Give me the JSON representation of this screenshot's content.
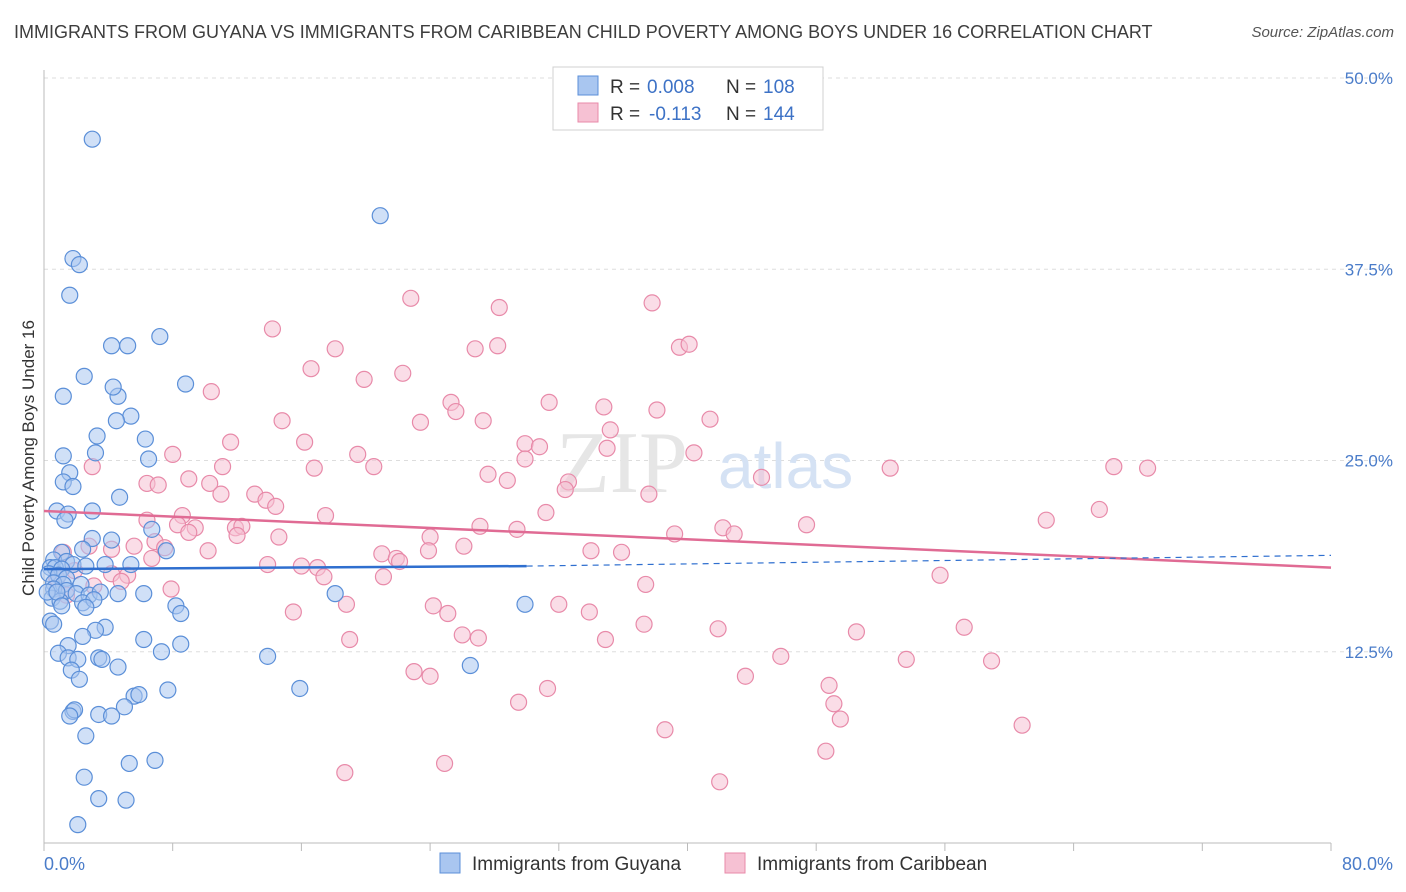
{
  "title": "IMMIGRANTS FROM GUYANA VS IMMIGRANTS FROM CARIBBEAN CHILD POVERTY AMONG BOYS UNDER 16 CORRELATION CHART",
  "source": "Source: ZipAtlas.com",
  "watermark": {
    "zip": "ZIP",
    "atlas": "atlas"
  },
  "legend_box": {
    "rows": [
      {
        "r_label": "R =",
        "r_value": "0.008",
        "n_label": "N =",
        "n_value": "108"
      },
      {
        "r_label": "R =",
        "r_value": "-0.113",
        "n_label": "N =",
        "n_value": "144"
      }
    ]
  },
  "colors": {
    "guyana_fill": "#a9c6f0",
    "guyana_stroke": "#5b8fd8",
    "guyana_line": "#2f6fcf",
    "caribbean_fill": "#f6c1d3",
    "caribbean_stroke": "#e88aa9",
    "caribbean_line": "#e06b94",
    "tick_text": "#4a7cc9",
    "grid": "#dddddd"
  },
  "chart_data": {
    "type": "scatter",
    "title": "IMMIGRANTS FROM GUYANA VS IMMIGRANTS FROM CARIBBEAN CHILD POVERTY AMONG BOYS UNDER 16 CORRELATION CHART",
    "xlabel": "",
    "ylabel": "Child Poverty Among Boys Under 16",
    "xlim": [
      0,
      80
    ],
    "ylim": [
      0,
      50
    ],
    "x_tick_labels": [
      "0.0%",
      "80.0%"
    ],
    "y_tick_values": [
      12.5,
      25,
      37.5,
      50
    ],
    "y_tick_labels": [
      "12.5%",
      "25.0%",
      "37.5%",
      "50.0%"
    ],
    "grid": true,
    "legend_position": "top-center",
    "series": [
      {
        "name": "Immigrants from Guyana",
        "R": 0.008,
        "N": 108,
        "trend": {
          "x": [
            0,
            30
          ],
          "y": [
            17.9,
            18.1
          ],
          "dashed_extension_to": [
            80,
            18.8
          ]
        },
        "points": [
          [
            3.0,
            46.0
          ],
          [
            1.8,
            38.2
          ],
          [
            2.2,
            37.8
          ],
          [
            1.6,
            35.8
          ],
          [
            20.9,
            41.0
          ],
          [
            4.2,
            32.5
          ],
          [
            5.2,
            32.5
          ],
          [
            7.2,
            33.1
          ],
          [
            2.5,
            30.5
          ],
          [
            8.8,
            30.0
          ],
          [
            1.2,
            29.2
          ],
          [
            4.6,
            29.2
          ],
          [
            4.3,
            29.8
          ],
          [
            5.4,
            27.9
          ],
          [
            4.5,
            27.6
          ],
          [
            3.3,
            26.6
          ],
          [
            6.3,
            26.4
          ],
          [
            1.2,
            25.3
          ],
          [
            3.2,
            25.5
          ],
          [
            6.5,
            25.1
          ],
          [
            1.6,
            24.2
          ],
          [
            1.2,
            23.6
          ],
          [
            1.8,
            23.3
          ],
          [
            4.7,
            22.6
          ],
          [
            0.8,
            21.7
          ],
          [
            1.5,
            21.5
          ],
          [
            3.0,
            21.7
          ],
          [
            1.3,
            21.1
          ],
          [
            6.7,
            20.5
          ],
          [
            3.0,
            19.9
          ],
          [
            4.2,
            19.8
          ],
          [
            7.6,
            19.1
          ],
          [
            2.4,
            19.2
          ],
          [
            1.1,
            19.0
          ],
          [
            0.6,
            18.5
          ],
          [
            1.4,
            18.4
          ],
          [
            1.8,
            18.2
          ],
          [
            0.4,
            18.0
          ],
          [
            0.7,
            18.0
          ],
          [
            1.1,
            17.9
          ],
          [
            2.6,
            18.1
          ],
          [
            3.8,
            18.2
          ],
          [
            5.4,
            18.2
          ],
          [
            0.3,
            17.6
          ],
          [
            0.9,
            17.5
          ],
          [
            1.4,
            17.3
          ],
          [
            0.6,
            17.0
          ],
          [
            1.2,
            16.9
          ],
          [
            2.3,
            16.9
          ],
          [
            0.6,
            16.6
          ],
          [
            1.4,
            16.5
          ],
          [
            2.0,
            16.3
          ],
          [
            2.8,
            16.2
          ],
          [
            3.5,
            16.4
          ],
          [
            4.6,
            16.3
          ],
          [
            6.2,
            16.3
          ],
          [
            0.5,
            16.0
          ],
          [
            1.0,
            15.8
          ],
          [
            2.4,
            15.7
          ],
          [
            3.1,
            15.9
          ],
          [
            0.2,
            16.4
          ],
          [
            0.8,
            16.4
          ],
          [
            18.1,
            16.3
          ],
          [
            29.9,
            15.6
          ],
          [
            1.1,
            15.5
          ],
          [
            2.6,
            15.4
          ],
          [
            8.2,
            15.5
          ],
          [
            8.5,
            15.0
          ],
          [
            0.4,
            14.5
          ],
          [
            0.6,
            14.3
          ],
          [
            3.8,
            14.1
          ],
          [
            3.2,
            13.9
          ],
          [
            2.4,
            13.5
          ],
          [
            6.2,
            13.3
          ],
          [
            8.5,
            13.0
          ],
          [
            1.5,
            12.9
          ],
          [
            0.9,
            12.4
          ],
          [
            1.5,
            12.1
          ],
          [
            2.1,
            12.0
          ],
          [
            3.4,
            12.1
          ],
          [
            7.3,
            12.5
          ],
          [
            13.9,
            12.2
          ],
          [
            26.5,
            11.6
          ],
          [
            3.6,
            12.0
          ],
          [
            4.6,
            11.5
          ],
          [
            1.7,
            11.3
          ],
          [
            2.2,
            10.7
          ],
          [
            7.7,
            10.0
          ],
          [
            15.9,
            10.1
          ],
          [
            5.6,
            9.6
          ],
          [
            5.9,
            9.7
          ],
          [
            5.0,
            8.9
          ],
          [
            1.8,
            8.6
          ],
          [
            1.9,
            8.7
          ],
          [
            1.6,
            8.3
          ],
          [
            3.4,
            8.4
          ],
          [
            4.2,
            8.3
          ],
          [
            2.6,
            7.0
          ],
          [
            5.3,
            5.2
          ],
          [
            6.9,
            5.4
          ],
          [
            2.5,
            4.3
          ],
          [
            3.4,
            2.9
          ],
          [
            5.1,
            2.8
          ],
          [
            2.1,
            1.2
          ]
        ]
      },
      {
        "name": "Immigrants from Caribbean",
        "R": -0.113,
        "N": 144,
        "trend": {
          "x": [
            0,
            80
          ],
          "y": [
            21.7,
            18.0
          ]
        },
        "points": [
          [
            22.8,
            35.6
          ],
          [
            28.3,
            35.0
          ],
          [
            37.8,
            35.3
          ],
          [
            14.2,
            33.6
          ],
          [
            18.1,
            32.3
          ],
          [
            26.8,
            32.3
          ],
          [
            28.2,
            32.5
          ],
          [
            39.5,
            32.4
          ],
          [
            40.1,
            32.6
          ],
          [
            16.6,
            31.0
          ],
          [
            19.9,
            30.3
          ],
          [
            22.3,
            30.7
          ],
          [
            10.4,
            29.5
          ],
          [
            31.4,
            28.8
          ],
          [
            25.3,
            28.8
          ],
          [
            25.6,
            28.2
          ],
          [
            34.8,
            28.5
          ],
          [
            38.1,
            28.3
          ],
          [
            14.8,
            27.6
          ],
          [
            23.4,
            27.5
          ],
          [
            27.3,
            27.6
          ],
          [
            41.4,
            27.7
          ],
          [
            35.2,
            27.0
          ],
          [
            16.2,
            26.2
          ],
          [
            11.6,
            26.2
          ],
          [
            29.9,
            26.1
          ],
          [
            30.8,
            25.9
          ],
          [
            8.0,
            25.4
          ],
          [
            19.5,
            25.4
          ],
          [
            35.0,
            25.8
          ],
          [
            29.9,
            25.1
          ],
          [
            40.4,
            25.5
          ],
          [
            20.5,
            24.6
          ],
          [
            3.0,
            24.6
          ],
          [
            11.1,
            24.6
          ],
          [
            16.8,
            24.5
          ],
          [
            27.6,
            24.1
          ],
          [
            28.8,
            23.7
          ],
          [
            32.6,
            23.6
          ],
          [
            44.6,
            23.9
          ],
          [
            52.6,
            24.5
          ],
          [
            66.5,
            24.6
          ],
          [
            68.6,
            24.5
          ],
          [
            6.4,
            23.5
          ],
          [
            9.0,
            23.8
          ],
          [
            10.3,
            23.5
          ],
          [
            7.1,
            23.4
          ],
          [
            11.0,
            22.8
          ],
          [
            13.1,
            22.8
          ],
          [
            32.4,
            23.1
          ],
          [
            37.6,
            22.8
          ],
          [
            13.8,
            22.4
          ],
          [
            14.4,
            22.0
          ],
          [
            31.2,
            21.6
          ],
          [
            8.6,
            21.4
          ],
          [
            17.5,
            21.4
          ],
          [
            62.3,
            21.1
          ],
          [
            65.6,
            21.8
          ],
          [
            6.4,
            21.1
          ],
          [
            8.3,
            20.8
          ],
          [
            9.4,
            20.6
          ],
          [
            11.9,
            20.6
          ],
          [
            12.3,
            20.7
          ],
          [
            27.1,
            20.7
          ],
          [
            29.4,
            20.5
          ],
          [
            42.2,
            20.6
          ],
          [
            42.9,
            20.2
          ],
          [
            47.4,
            20.8
          ],
          [
            9.0,
            20.3
          ],
          [
            12.0,
            20.1
          ],
          [
            14.6,
            20.0
          ],
          [
            24.0,
            20.0
          ],
          [
            39.2,
            20.2
          ],
          [
            6.9,
            19.7
          ],
          [
            2.8,
            19.4
          ],
          [
            5.6,
            19.4
          ],
          [
            4.2,
            19.2
          ],
          [
            7.5,
            19.3
          ],
          [
            1.2,
            19.0
          ],
          [
            10.2,
            19.1
          ],
          [
            23.9,
            19.1
          ],
          [
            26.1,
            19.4
          ],
          [
            34.0,
            19.1
          ],
          [
            35.9,
            19.0
          ],
          [
            21.0,
            18.9
          ],
          [
            6.7,
            18.6
          ],
          [
            21.9,
            18.6
          ],
          [
            13.9,
            18.2
          ],
          [
            16.0,
            18.1
          ],
          [
            17.0,
            18.0
          ],
          [
            22.1,
            18.4
          ],
          [
            1.9,
            17.8
          ],
          [
            0.8,
            17.3
          ],
          [
            4.2,
            17.6
          ],
          [
            5.2,
            17.5
          ],
          [
            17.4,
            17.4
          ],
          [
            21.1,
            17.4
          ],
          [
            55.7,
            17.5
          ],
          [
            4.8,
            17.1
          ],
          [
            3.1,
            16.8
          ],
          [
            7.9,
            16.6
          ],
          [
            37.4,
            16.9
          ],
          [
            1.4,
            16.2
          ],
          [
            18.8,
            15.6
          ],
          [
            24.2,
            15.5
          ],
          [
            25.1,
            15.0
          ],
          [
            32.0,
            15.6
          ],
          [
            33.9,
            15.1
          ],
          [
            41.9,
            14.0
          ],
          [
            15.5,
            15.1
          ],
          [
            37.3,
            14.3
          ],
          [
            50.5,
            13.8
          ],
          [
            57.2,
            14.1
          ],
          [
            26.0,
            13.6
          ],
          [
            27.0,
            13.4
          ],
          [
            19.0,
            13.3
          ],
          [
            34.9,
            13.3
          ],
          [
            45.8,
            12.2
          ],
          [
            53.6,
            12.0
          ],
          [
            58.9,
            11.9
          ],
          [
            23.0,
            11.2
          ],
          [
            24.0,
            10.9
          ],
          [
            43.6,
            10.9
          ],
          [
            48.8,
            10.3
          ],
          [
            31.3,
            10.1
          ],
          [
            29.5,
            9.2
          ],
          [
            49.1,
            9.1
          ],
          [
            49.5,
            8.1
          ],
          [
            60.8,
            7.7
          ],
          [
            38.6,
            7.4
          ],
          [
            48.6,
            6.0
          ],
          [
            18.7,
            4.6
          ],
          [
            24.9,
            5.2
          ],
          [
            42.0,
            4.0
          ]
        ]
      }
    ]
  },
  "bottom_legend": [
    "Immigrants from Guyana",
    "Immigrants from Caribbean"
  ]
}
